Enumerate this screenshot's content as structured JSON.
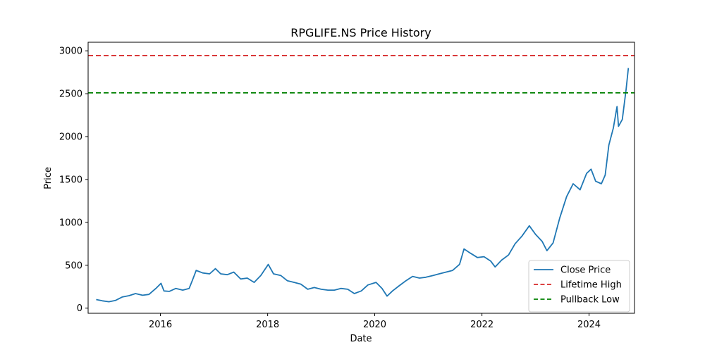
{
  "chart_data": {
    "type": "line",
    "title": "RPGLIFE.NS Price History",
    "xlabel": "Date",
    "ylabel": "Price",
    "xlim": [
      "2014-08-26",
      "2024-11-06"
    ],
    "ylim": [
      -60,
      3100
    ],
    "x_ticks": [
      {
        "date": "2016-01-01",
        "label": "2016"
      },
      {
        "date": "2018-01-01",
        "label": "2018"
      },
      {
        "date": "2020-01-01",
        "label": "2020"
      },
      {
        "date": "2022-01-01",
        "label": "2022"
      },
      {
        "date": "2024-01-01",
        "label": "2024"
      }
    ],
    "y_ticks": [
      {
        "value": 0,
        "label": "0"
      },
      {
        "value": 500,
        "label": "500"
      },
      {
        "value": 1000,
        "label": "1000"
      },
      {
        "value": 1500,
        "label": "1500"
      },
      {
        "value": 2000,
        "label": "2000"
      },
      {
        "value": 2500,
        "label": "2500"
      },
      {
        "value": 3000,
        "label": "3000"
      }
    ],
    "grid": false,
    "legend_position": "lower right",
    "series": [
      {
        "name": "Close Price",
        "color": "#1f77b4",
        "style": "solid",
        "points": [
          [
            "2014-10-20",
            100
          ],
          [
            "2014-12-01",
            85
          ],
          [
            "2015-01-15",
            75
          ],
          [
            "2015-03-01",
            90
          ],
          [
            "2015-04-15",
            130
          ],
          [
            "2015-06-01",
            145
          ],
          [
            "2015-07-15",
            170
          ],
          [
            "2015-09-01",
            150
          ],
          [
            "2015-10-15",
            160
          ],
          [
            "2015-12-01",
            230
          ],
          [
            "2016-01-05",
            290
          ],
          [
            "2016-01-25",
            200
          ],
          [
            "2016-03-01",
            195
          ],
          [
            "2016-04-15",
            230
          ],
          [
            "2016-06-01",
            210
          ],
          [
            "2016-07-15",
            230
          ],
          [
            "2016-08-05",
            320
          ],
          [
            "2016-09-01",
            440
          ],
          [
            "2016-10-15",
            410
          ],
          [
            "2016-12-01",
            400
          ],
          [
            "2017-01-10",
            460
          ],
          [
            "2017-02-15",
            400
          ],
          [
            "2017-04-01",
            390
          ],
          [
            "2017-05-15",
            420
          ],
          [
            "2017-07-01",
            340
          ],
          [
            "2017-08-15",
            350
          ],
          [
            "2017-10-01",
            300
          ],
          [
            "2017-11-15",
            380
          ],
          [
            "2018-01-05",
            510
          ],
          [
            "2018-02-10",
            400
          ],
          [
            "2018-04-01",
            380
          ],
          [
            "2018-05-15",
            320
          ],
          [
            "2018-07-01",
            300
          ],
          [
            "2018-08-15",
            280
          ],
          [
            "2018-10-01",
            220
          ],
          [
            "2018-11-15",
            240
          ],
          [
            "2019-01-01",
            220
          ],
          [
            "2019-02-15",
            210
          ],
          [
            "2019-04-01",
            210
          ],
          [
            "2019-05-15",
            230
          ],
          [
            "2019-07-01",
            220
          ],
          [
            "2019-08-15",
            170
          ],
          [
            "2019-10-01",
            200
          ],
          [
            "2019-11-15",
            270
          ],
          [
            "2020-01-10",
            300
          ],
          [
            "2020-02-20",
            230
          ],
          [
            "2020-03-25",
            140
          ],
          [
            "2020-05-01",
            200
          ],
          [
            "2020-06-15",
            260
          ],
          [
            "2020-08-01",
            320
          ],
          [
            "2020-09-15",
            370
          ],
          [
            "2020-11-01",
            350
          ],
          [
            "2020-12-15",
            360
          ],
          [
            "2021-02-01",
            380
          ],
          [
            "2021-03-15",
            400
          ],
          [
            "2021-05-01",
            420
          ],
          [
            "2021-06-15",
            440
          ],
          [
            "2021-08-01",
            510
          ],
          [
            "2021-09-01",
            690
          ],
          [
            "2021-10-15",
            640
          ],
          [
            "2021-12-01",
            590
          ],
          [
            "2022-01-15",
            600
          ],
          [
            "2022-03-01",
            550
          ],
          [
            "2022-04-01",
            480
          ],
          [
            "2022-05-15",
            560
          ],
          [
            "2022-07-01",
            620
          ],
          [
            "2022-08-15",
            750
          ],
          [
            "2022-10-01",
            840
          ],
          [
            "2022-11-20",
            960
          ],
          [
            "2023-01-01",
            860
          ],
          [
            "2023-02-15",
            780
          ],
          [
            "2023-03-20",
            670
          ],
          [
            "2023-05-01",
            760
          ],
          [
            "2023-06-15",
            1050
          ],
          [
            "2023-08-01",
            1300
          ],
          [
            "2023-09-15",
            1450
          ],
          [
            "2023-11-01",
            1380
          ],
          [
            "2023-12-15",
            1570
          ],
          [
            "2024-01-15",
            1620
          ],
          [
            "2024-02-15",
            1480
          ],
          [
            "2024-03-25",
            1450
          ],
          [
            "2024-04-20",
            1550
          ],
          [
            "2024-05-15",
            1900
          ],
          [
            "2024-06-15",
            2100
          ],
          [
            "2024-07-10",
            2350
          ],
          [
            "2024-07-20",
            2120
          ],
          [
            "2024-08-15",
            2200
          ],
          [
            "2024-09-10",
            2550
          ],
          [
            "2024-09-25",
            2800
          ]
        ]
      },
      {
        "name": "Lifetime High",
        "color": "#d62728",
        "style": "dashed",
        "hline": 2945
      },
      {
        "name": "Pullback Low",
        "color": "#008000",
        "style": "dashed",
        "hline": 2510
      }
    ]
  }
}
